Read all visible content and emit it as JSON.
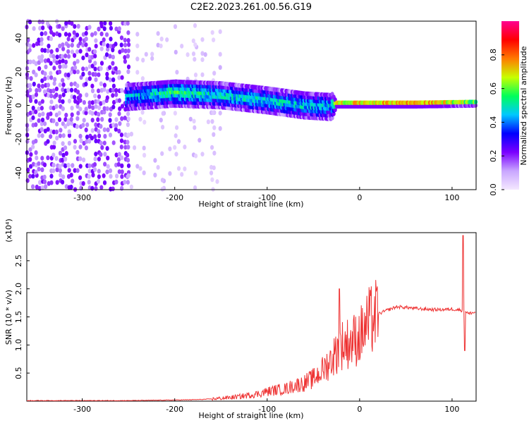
{
  "chart_data": [
    {
      "type": "heatmap",
      "title": "C2E2.2023.261.00.56.G19",
      "xlabel": "Height of straight line (km)",
      "ylabel": "Frequency (Hz)",
      "xlim": [
        -360,
        126
      ],
      "ylim": [
        -50,
        50
      ],
      "x_ticks": [
        -300,
        -200,
        -100,
        0,
        100
      ],
      "y_ticks": [
        -40,
        -20,
        0,
        20,
        40
      ],
      "colorbar": {
        "label": "Normalized spectral amplitude",
        "range": [
          0,
          1
        ],
        "ticks": [
          0.0,
          0.2,
          0.4,
          0.6,
          0.8
        ],
        "colors": [
          "#f4e8ff",
          "#c9a6ff",
          "#7a00ff",
          "#0000ff",
          "#00c8ff",
          "#00ff5a",
          "#c8ff00",
          "#ff7a00",
          "#ff0000",
          "#ff0090"
        ]
      },
      "band": {
        "description_points": [
          {
            "x": -250,
            "center": 5,
            "width": 14,
            "amp": 0.45
          },
          {
            "x": -200,
            "center": 8,
            "width": 16,
            "amp": 0.55
          },
          {
            "x": -150,
            "center": 6,
            "width": 14,
            "amp": 0.5
          },
          {
            "x": -100,
            "center": 3,
            "width": 14,
            "amp": 0.5
          },
          {
            "x": -60,
            "center": 0,
            "width": 14,
            "amp": 0.5
          },
          {
            "x": -30,
            "center": 0,
            "width": 16,
            "amp": 0.45
          },
          {
            "x": -25,
            "center": 1,
            "width": 3,
            "amp": 0.85
          },
          {
            "x": 60,
            "center": 1,
            "width": 3,
            "amp": 0.95
          },
          {
            "x": 126,
            "center": 2,
            "width": 4,
            "amp": 0.55
          }
        ],
        "noise_region_x": [
          -360,
          -250
        ],
        "faint_stripes_x": [
          -235,
          -215,
          -200,
          -180,
          -160
        ]
      }
    },
    {
      "type": "line",
      "xlabel": "Height of straight line (km)",
      "ylabel": "SNR (10 * v/v)",
      "y_multiplier": "(x10⁴)",
      "xlim": [
        -360,
        126
      ],
      "ylim": [
        0,
        3.0
      ],
      "x_ticks": [
        -300,
        -200,
        -100,
        0,
        100
      ],
      "y_ticks": [
        0.5,
        1.0,
        1.5,
        2.0,
        2.5
      ],
      "color": "#ee3333",
      "series": [
        {
          "x": [
            -360,
            -300,
            -250,
            -200,
            -170,
            -150,
            -130,
            -110,
            -100,
            -90,
            -80,
            -70,
            -60,
            -50,
            -40,
            -30,
            -20,
            -10,
            0,
            10,
            20,
            30,
            40,
            50,
            60,
            70,
            80,
            90,
            100,
            110,
            115,
            118,
            120,
            126
          ],
          "values": [
            0.01,
            0.01,
            0.01,
            0.02,
            0.03,
            0.05,
            0.08,
            0.13,
            0.17,
            0.2,
            0.22,
            0.28,
            0.32,
            0.4,
            0.55,
            0.75,
            1.0,
            1.05,
            1.15,
            1.4,
            1.55,
            1.62,
            1.68,
            1.67,
            1.65,
            1.64,
            1.63,
            1.63,
            1.64,
            1.62,
            1.6,
            1.55,
            1.57,
            1.58
          ]
        }
      ],
      "spikes": [
        {
          "x": -22,
          "y": 2.0
        },
        {
          "x": 112,
          "y": 2.95
        },
        {
          "x": 114,
          "y": 0.9
        }
      ]
    }
  ]
}
